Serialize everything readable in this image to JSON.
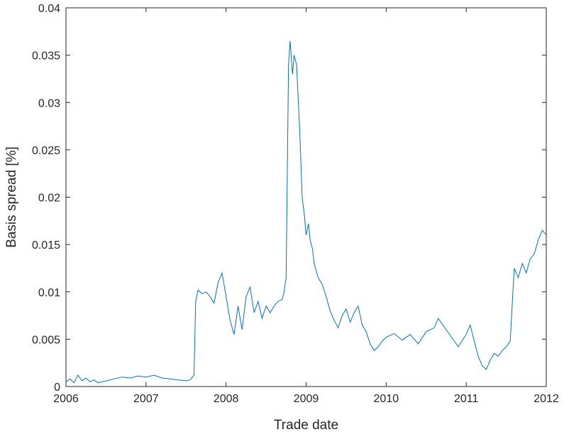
{
  "chart_data": {
    "type": "line",
    "title": "",
    "xlabel": "Trade date",
    "ylabel": "Basis spread [%]",
    "xlim": [
      2006,
      2012
    ],
    "ylim": [
      0,
      0.04
    ],
    "x_ticks": [
      "2006",
      "2007",
      "2008",
      "2009",
      "2010",
      "2011",
      "2012"
    ],
    "y_ticks": [
      "0",
      "0.005",
      "0.01",
      "0.015",
      "0.02",
      "0.025",
      "0.03",
      "0.035",
      "0.04"
    ],
    "grid": false,
    "line_color": "#0072BD",
    "series": [
      {
        "x": [
          2006.0,
          2006.05,
          2006.1,
          2006.15,
          2006.2,
          2006.25,
          2006.3,
          2006.35,
          2006.4,
          2006.5,
          2006.6,
          2006.7,
          2006.8,
          2006.9,
          2007.0,
          2007.1,
          2007.2,
          2007.3,
          2007.4,
          2007.5,
          2007.55,
          2007.6,
          2007.62,
          2007.65,
          2007.7,
          2007.75,
          2007.8,
          2007.85,
          2007.9,
          2007.95,
          2008.0,
          2008.05,
          2008.1,
          2008.15,
          2008.2,
          2008.25,
          2008.3,
          2008.35,
          2008.4,
          2008.45,
          2008.5,
          2008.55,
          2008.6,
          2008.65,
          2008.7,
          2008.72,
          2008.75,
          2008.78,
          2008.8,
          2008.83,
          2008.85,
          2008.88,
          2008.92,
          2008.95,
          2008.98,
          2009.0,
          2009.03,
          2009.05,
          2009.08,
          2009.1,
          2009.15,
          2009.2,
          2009.25,
          2009.3,
          2009.35,
          2009.4,
          2009.45,
          2009.5,
          2009.55,
          2009.6,
          2009.65,
          2009.7,
          2009.75,
          2009.8,
          2009.85,
          2009.9,
          2009.95,
          2010.0,
          2010.1,
          2010.2,
          2010.3,
          2010.4,
          2010.5,
          2010.6,
          2010.65,
          2010.7,
          2010.8,
          2010.9,
          2011.0,
          2011.05,
          2011.1,
          2011.15,
          2011.2,
          2011.25,
          2011.3,
          2011.35,
          2011.4,
          2011.45,
          2011.5,
          2011.55,
          2011.58,
          2011.6,
          2011.65,
          2011.7,
          2011.75,
          2011.8,
          2011.85,
          2011.9,
          2011.95,
          2012.0
        ],
        "values": [
          0.0005,
          0.0008,
          0.0004,
          0.0012,
          0.0006,
          0.0009,
          0.0005,
          0.0007,
          0.0004,
          0.0006,
          0.0008,
          0.001,
          0.0009,
          0.0011,
          0.001,
          0.0012,
          0.0009,
          0.0008,
          0.0007,
          0.0006,
          0.0007,
          0.0012,
          0.009,
          0.0102,
          0.0098,
          0.01,
          0.0095,
          0.0088,
          0.011,
          0.012,
          0.0095,
          0.007,
          0.0055,
          0.0085,
          0.006,
          0.0095,
          0.0105,
          0.0078,
          0.009,
          0.0072,
          0.0085,
          0.0078,
          0.0085,
          0.009,
          0.0092,
          0.0098,
          0.0115,
          0.034,
          0.0365,
          0.033,
          0.035,
          0.034,
          0.027,
          0.02,
          0.018,
          0.016,
          0.0172,
          0.0155,
          0.0145,
          0.013,
          0.0115,
          0.0108,
          0.0095,
          0.008,
          0.007,
          0.0062,
          0.0075,
          0.0082,
          0.0068,
          0.0078,
          0.0085,
          0.0065,
          0.0058,
          0.0045,
          0.0038,
          0.0042,
          0.0048,
          0.0052,
          0.0056,
          0.0049,
          0.0055,
          0.0045,
          0.0058,
          0.0062,
          0.0072,
          0.0066,
          0.0054,
          0.0042,
          0.0055,
          0.0065,
          0.0048,
          0.0032,
          0.0022,
          0.0018,
          0.0028,
          0.0035,
          0.0032,
          0.0038,
          0.0042,
          0.0048,
          0.0095,
          0.0125,
          0.0115,
          0.013,
          0.012,
          0.0135,
          0.014,
          0.0155,
          0.0165,
          0.016
        ]
      }
    ]
  }
}
